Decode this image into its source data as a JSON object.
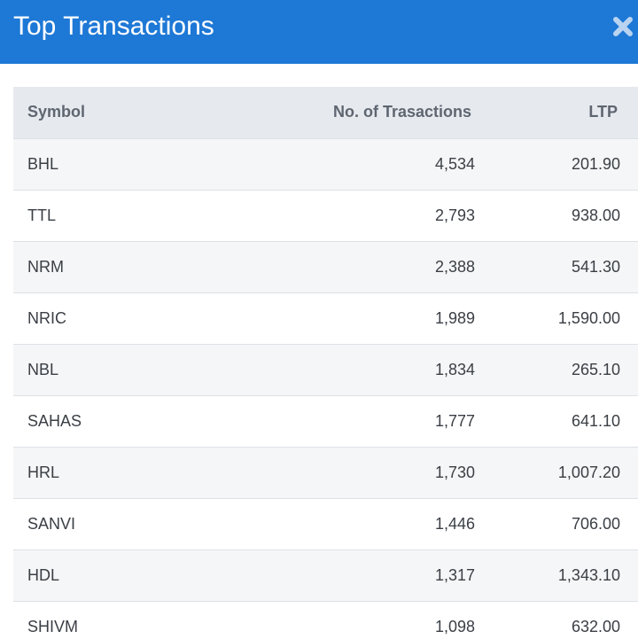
{
  "modal": {
    "title": "Top Transactions",
    "close_icon": "close-x-icon",
    "accent_color": "#1d78d6"
  },
  "table": {
    "columns": [
      "Symbol",
      "No. of Trasactions",
      "LTP"
    ],
    "rows": [
      {
        "symbol": "BHL",
        "transactions": "4,534",
        "ltp": "201.90"
      },
      {
        "symbol": "TTL",
        "transactions": "2,793",
        "ltp": "938.00"
      },
      {
        "symbol": "NRM",
        "transactions": "2,388",
        "ltp": "541.30"
      },
      {
        "symbol": "NRIC",
        "transactions": "1,989",
        "ltp": "1,590.00"
      },
      {
        "symbol": "NBL",
        "transactions": "1,834",
        "ltp": "265.10"
      },
      {
        "symbol": "SAHAS",
        "transactions": "1,777",
        "ltp": "641.10"
      },
      {
        "symbol": "HRL",
        "transactions": "1,730",
        "ltp": "1,007.20"
      },
      {
        "symbol": "SANVI",
        "transactions": "1,446",
        "ltp": "706.00"
      },
      {
        "symbol": "HDL",
        "transactions": "1,317",
        "ltp": "1,343.10"
      },
      {
        "symbol": "SHIVM",
        "transactions": "1,098",
        "ltp": "632.00"
      }
    ]
  }
}
